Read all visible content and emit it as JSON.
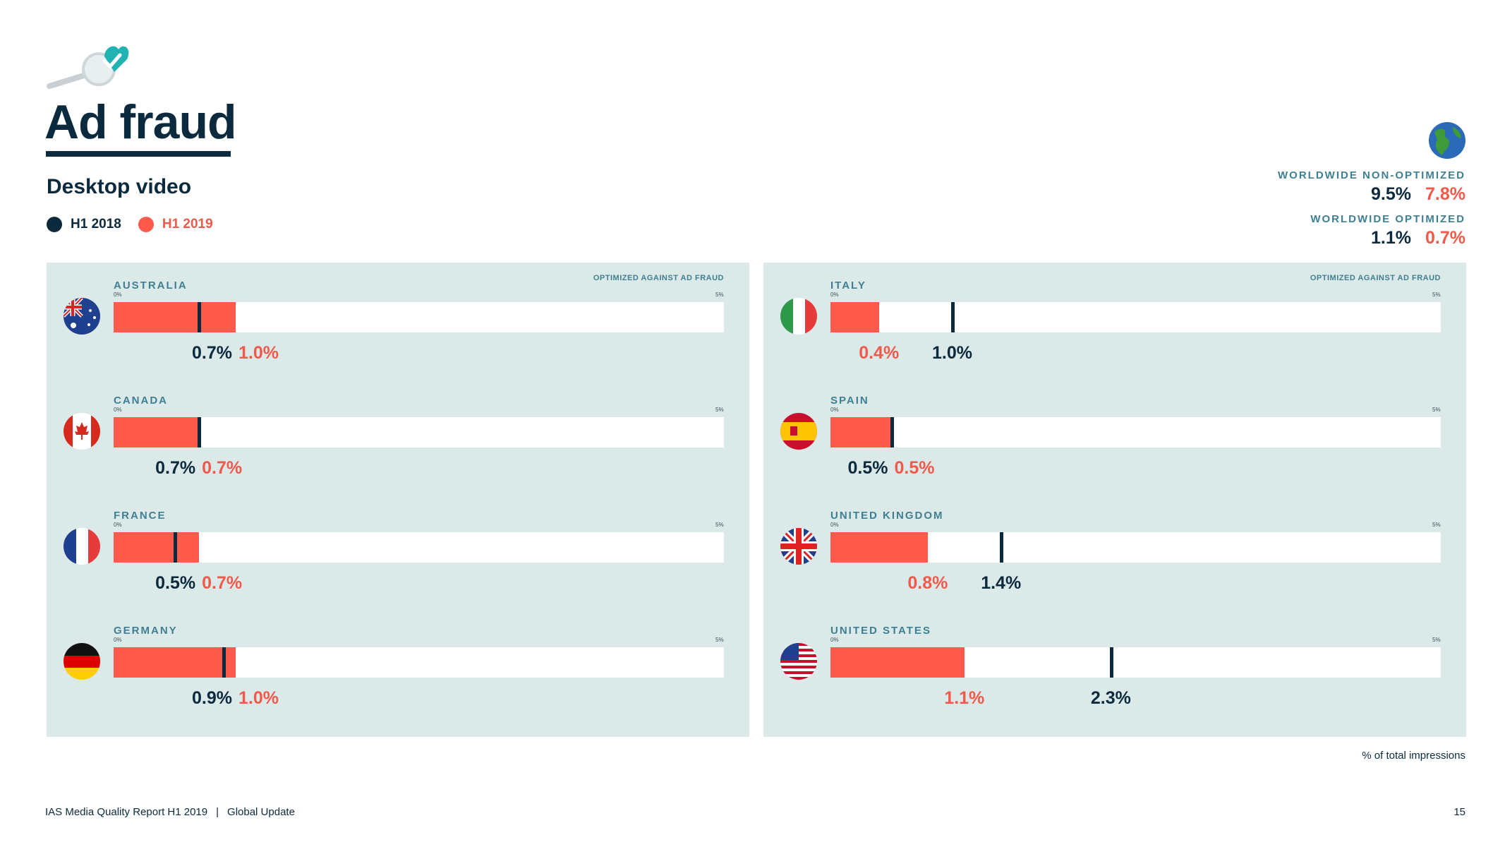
{
  "header": {
    "title": "Ad fraud",
    "subtitle": "Desktop video"
  },
  "legend": [
    {
      "label": "H1 2018",
      "color": "#0b2a3d"
    },
    {
      "label": "H1 2019",
      "color": "#ff5a4c"
    }
  ],
  "worldwide": {
    "non_optimized_label": "WORLDWIDE NON-OPTIMIZED",
    "non_optimized_h1_2018": "9.5%",
    "non_optimized_h1_2019": "7.8%",
    "optimized_label": "WORLDWIDE OPTIMIZED",
    "optimized_h1_2018": "1.1%",
    "optimized_h1_2019": "0.7%"
  },
  "panel_note": "OPTIMIZED AGAINST AD FRAUD",
  "icons": {
    "logo": "magnifier-check-icon",
    "globe": "globe-icon"
  },
  "colors": {
    "h1_2018": "#0b2a3d",
    "h1_2019": "#ff5a4c",
    "panel": "#dce9e9",
    "label": "#3f7f92"
  },
  "chart_data": {
    "type": "bar",
    "axis": {
      "min_label": "0%",
      "max_label": "5%",
      "xlim": [
        0,
        5
      ]
    },
    "categories": [
      "AUSTRALIA",
      "CANADA",
      "FRANCE",
      "GERMANY",
      "ITALY",
      "SPAIN",
      "UNITED KINGDOM",
      "UNITED STATES"
    ],
    "flags": [
      "australia-flag-icon",
      "canada-flag-icon",
      "france-flag-icon",
      "germany-flag-icon",
      "italy-flag-icon",
      "spain-flag-icon",
      "uk-flag-icon",
      "us-flag-icon"
    ],
    "series": [
      {
        "name": "H1 2018",
        "values": [
          0.7,
          0.7,
          0.5,
          0.9,
          1.0,
          0.5,
          1.4,
          2.3
        ],
        "labels": [
          "0.7%",
          "0.7%",
          "0.5%",
          "0.9%",
          "1.0%",
          "0.5%",
          "1.4%",
          "2.3%"
        ]
      },
      {
        "name": "H1 2019",
        "values": [
          1.0,
          0.7,
          0.7,
          1.0,
          0.4,
          0.5,
          0.8,
          1.1
        ],
        "labels": [
          "1.0%",
          "0.7%",
          "0.7%",
          "1.0%",
          "0.4%",
          "0.5%",
          "0.8%",
          "1.1%"
        ]
      }
    ]
  },
  "impressions_note": "% of total impressions",
  "footer": {
    "report": "IAS Media Quality Report H1 2019",
    "separator": "|",
    "section": "Global Update",
    "page": "15"
  }
}
